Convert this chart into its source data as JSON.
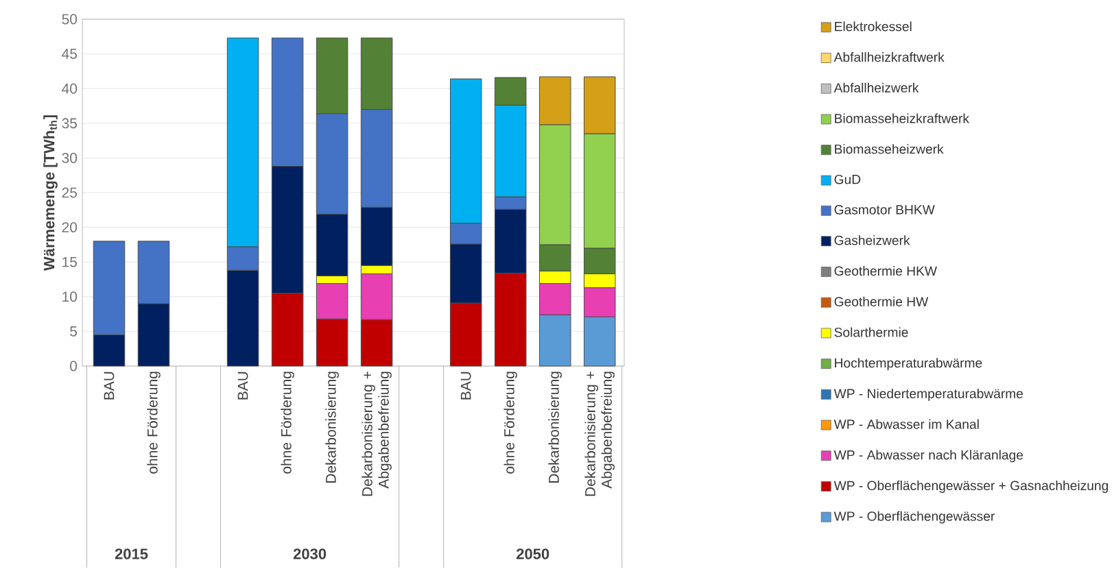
{
  "chart_data": {
    "type": "bar",
    "stacked": true,
    "ylabel": "Wärmemenge [TWh$_{th}$]",
    "categories": [
      "BAU",
      "ohne Förderung",
      null,
      "BAU",
      "ohne Förderung",
      "Dekarbonisierung",
      "Dekarbonisierung + Abgabenbefreiung",
      null,
      "BAU",
      "ohne Förderung",
      "Dekarbonisierung",
      "Dekarbonisierung + Abgabenbefreiung"
    ],
    "annotations": [
      "2015",
      "2030",
      "2050"
    ],
    "ylim": [
      0,
      50
    ],
    "yticks": [
      0,
      5,
      10,
      15,
      20,
      25,
      30,
      35,
      40,
      45,
      50
    ],
    "grid": "y",
    "legend": "right",
    "series": [
      {
        "name": "WP - Oberflächengewässer",
        "color": "#5b9bd5",
        "values": [
          null,
          null,
          null,
          null,
          null,
          null,
          null,
          null,
          null,
          null,
          7.4,
          7.1
        ]
      },
      {
        "name": "WP - Oberflächengewässer + Gasnachheizung",
        "color": "#c00000",
        "values": [
          null,
          null,
          null,
          null,
          10.5,
          6.8,
          6.7,
          null,
          9.1,
          13.4,
          null,
          null
        ]
      },
      {
        "name": "WP - Abwasser nach Kläranlage",
        "color": "#e83fb3",
        "values": [
          null,
          null,
          null,
          null,
          null,
          5.1,
          6.6,
          null,
          null,
          null,
          4.5,
          4.2
        ]
      },
      {
        "name": "WP - Abwasser im Kanal",
        "color": "#ff9900",
        "values": [
          null,
          null,
          null,
          null,
          null,
          null,
          null,
          null,
          null,
          null,
          null,
          null
        ]
      },
      {
        "name": "WP - Niedertemperaturabwärme",
        "color": "#2e75b6",
        "values": [
          null,
          null,
          null,
          null,
          null,
          null,
          null,
          null,
          null,
          null,
          null,
          null
        ]
      },
      {
        "name": "Hochtemperaturabwärme",
        "color": "#70ad47",
        "values": [
          null,
          null,
          null,
          null,
          null,
          null,
          null,
          null,
          null,
          null,
          null,
          null
        ]
      },
      {
        "name": "Solarthermie",
        "color": "#ffff00",
        "values": [
          null,
          null,
          null,
          null,
          null,
          1.1,
          1.2,
          null,
          null,
          null,
          1.8,
          2.0
        ]
      },
      {
        "name": "Geothermie HW",
        "color": "#c55a11",
        "values": [
          null,
          null,
          null,
          null,
          null,
          null,
          null,
          null,
          null,
          null,
          null,
          null
        ]
      },
      {
        "name": "Geothermie HKW",
        "color": "#7f7f7f",
        "values": [
          null,
          null,
          null,
          null,
          null,
          null,
          null,
          null,
          null,
          null,
          null,
          null
        ]
      },
      {
        "name": "Gasheizwerk",
        "color": "#002060",
        "values": [
          4.5,
          9,
          null,
          13.8,
          18.3,
          8.9,
          8.4,
          null,
          8.5,
          9.2,
          null,
          null
        ]
      },
      {
        "name": "Gasmotor BHKW",
        "color": "#4472c4",
        "values": [
          13.5,
          9,
          null,
          3.4,
          18.5,
          14.5,
          14.1,
          null,
          3.0,
          1.8,
          null,
          null
        ]
      },
      {
        "name": "GuD",
        "color": "#00b0f0",
        "values": [
          null,
          null,
          null,
          30.1,
          null,
          null,
          null,
          null,
          20.8,
          13.2,
          null,
          null
        ]
      },
      {
        "name": "Biomasseheizwerk",
        "color": "#538135",
        "values": [
          null,
          null,
          null,
          null,
          null,
          10.9,
          10.3,
          null,
          null,
          4.0,
          3.8,
          3.7
        ]
      },
      {
        "name": "Biomasseheizkraftwerk",
        "color": "#92d050",
        "values": [
          null,
          null,
          null,
          null,
          null,
          null,
          null,
          null,
          null,
          null,
          17.3,
          16.5
        ]
      },
      {
        "name": "Abfallheizwerk",
        "color": "#bfbfbf",
        "values": [
          null,
          null,
          null,
          null,
          null,
          null,
          null,
          null,
          null,
          null,
          null,
          null
        ]
      },
      {
        "name": "Abfallheizkraftwerk",
        "color": "#ffd966",
        "values": [
          null,
          null,
          null,
          null,
          null,
          null,
          null,
          null,
          null,
          null,
          null,
          null
        ]
      },
      {
        "name": "Elektrokessel",
        "color": "#d4a017",
        "values": [
          null,
          null,
          null,
          null,
          null,
          null,
          null,
          null,
          null,
          null,
          6.9,
          8.2
        ]
      }
    ]
  }
}
